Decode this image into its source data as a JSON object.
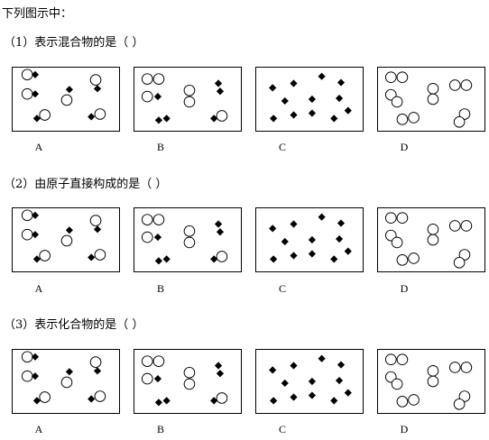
{
  "intro": "下列图示中：",
  "questions": [
    {
      "text": "（1）表示混合物的是（        ）"
    },
    {
      "text": "（2）由原子直接构成的是（        ）"
    },
    {
      "text": "（3）表示化合物的是（        ）"
    }
  ],
  "options": [
    "A",
    "B",
    "C",
    "D"
  ],
  "panels": {
    "A": [
      {
        "t": "w",
        "x": 16,
        "y": 8
      },
      {
        "t": "b",
        "x": 25,
        "y": 8
      },
      {
        "t": "w",
        "x": 16,
        "y": 30
      },
      {
        "t": "b",
        "x": 25,
        "y": 30
      },
      {
        "t": "w",
        "x": 36,
        "y": 54
      },
      {
        "t": "b",
        "x": 27,
        "y": 58
      },
      {
        "t": "b",
        "x": 64,
        "y": 25
      },
      {
        "t": "w",
        "x": 61,
        "y": 37
      },
      {
        "t": "w",
        "x": 94,
        "y": 14
      },
      {
        "t": "b",
        "x": 96,
        "y": 24
      },
      {
        "t": "w",
        "x": 99,
        "y": 53
      },
      {
        "t": "b",
        "x": 89,
        "y": 56
      }
    ],
    "B": [
      {
        "t": "w",
        "x": 14,
        "y": 13
      },
      {
        "t": "w",
        "x": 27,
        "y": 13
      },
      {
        "t": "w",
        "x": 14,
        "y": 33
      },
      {
        "t": "b",
        "x": 26,
        "y": 33
      },
      {
        "t": "w",
        "x": 62,
        "y": 26
      },
      {
        "t": "w",
        "x": 62,
        "y": 39
      },
      {
        "t": "b",
        "x": 95,
        "y": 18
      },
      {
        "t": "b",
        "x": 97,
        "y": 27
      },
      {
        "t": "b",
        "x": 27,
        "y": 60
      },
      {
        "t": "b",
        "x": 36,
        "y": 58
      },
      {
        "t": "w",
        "x": 99,
        "y": 55
      },
      {
        "t": "b",
        "x": 90,
        "y": 58
      }
    ],
    "C": [
      {
        "t": "b",
        "x": 18,
        "y": 23
      },
      {
        "t": "b",
        "x": 42,
        "y": 18
      },
      {
        "t": "b",
        "x": 74,
        "y": 10
      },
      {
        "t": "b",
        "x": 96,
        "y": 17
      },
      {
        "t": "b",
        "x": 32,
        "y": 38
      },
      {
        "t": "b",
        "x": 63,
        "y": 36
      },
      {
        "t": "b",
        "x": 94,
        "y": 35
      },
      {
        "t": "b",
        "x": 19,
        "y": 58
      },
      {
        "t": "b",
        "x": 42,
        "y": 54
      },
      {
        "t": "b",
        "x": 63,
        "y": 52
      },
      {
        "t": "b",
        "x": 88,
        "y": 58
      },
      {
        "t": "b",
        "x": 104,
        "y": 49
      }
    ],
    "D": [
      {
        "t": "w",
        "x": 14,
        "y": 11
      },
      {
        "t": "w",
        "x": 27,
        "y": 11
      },
      {
        "t": "w",
        "x": 14,
        "y": 31
      },
      {
        "t": "w",
        "x": 21,
        "y": 39
      },
      {
        "t": "w",
        "x": 62,
        "y": 24
      },
      {
        "t": "w",
        "x": 62,
        "y": 36
      },
      {
        "t": "w",
        "x": 87,
        "y": 20
      },
      {
        "t": "w",
        "x": 100,
        "y": 20
      },
      {
        "t": "w",
        "x": 27,
        "y": 59
      },
      {
        "t": "w",
        "x": 40,
        "y": 57
      },
      {
        "t": "w",
        "x": 98,
        "y": 53
      },
      {
        "t": "w",
        "x": 92,
        "y": 62
      }
    ]
  },
  "colors": {
    "white_atom_fill": "#ffffff",
    "black_atom_fill": "#000000",
    "stroke": "#000000"
  }
}
